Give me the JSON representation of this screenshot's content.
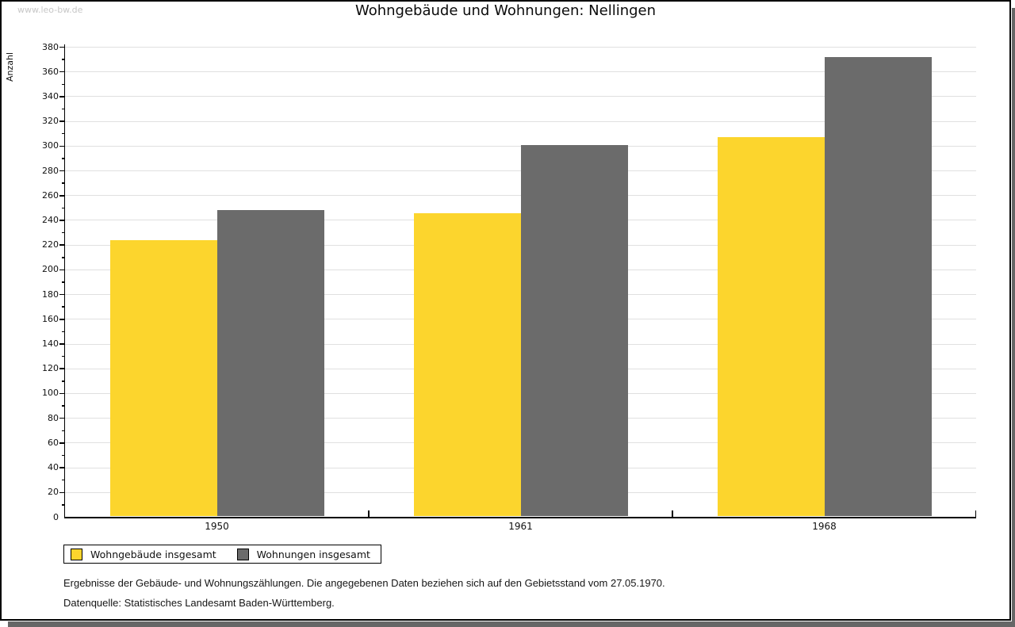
{
  "watermark": "www.leo-bw.de",
  "title": "Wohngebäude und Wohnungen: Nellingen",
  "footnotes": [
    "Ergebnisse der Gebäude- und Wohnungszählungen. Die angegebenen Daten beziehen sich auf den Gebietsstand vom 27.05.1970.",
    "Datenquelle: Statistisches Landesamt Baden-Württemberg."
  ],
  "colors": {
    "grid": "#e0e0e0",
    "axis": "#000000",
    "watermark": "#c7c7c7",
    "frame_shadow": "#666666"
  },
  "chart_data": {
    "type": "bar",
    "title": "Wohngebäude und Wohnungen: Nellingen",
    "categories": [
      "1950",
      "1961",
      "1968"
    ],
    "series": [
      {
        "name": "Wohngebäude insgesamt",
        "color": "#fcd52d",
        "values": [
          224,
          246,
          307
        ]
      },
      {
        "name": "Wohnungen insgesamt",
        "color": "#6b6b6b",
        "values": [
          248,
          301,
          372
        ]
      }
    ],
    "xlabel": "",
    "ylabel": "Anzahl",
    "ylim": [
      0,
      380
    ],
    "ytick_major": 20,
    "ytick_minor": 10,
    "grid": true,
    "legend_position": "bottom-left"
  }
}
